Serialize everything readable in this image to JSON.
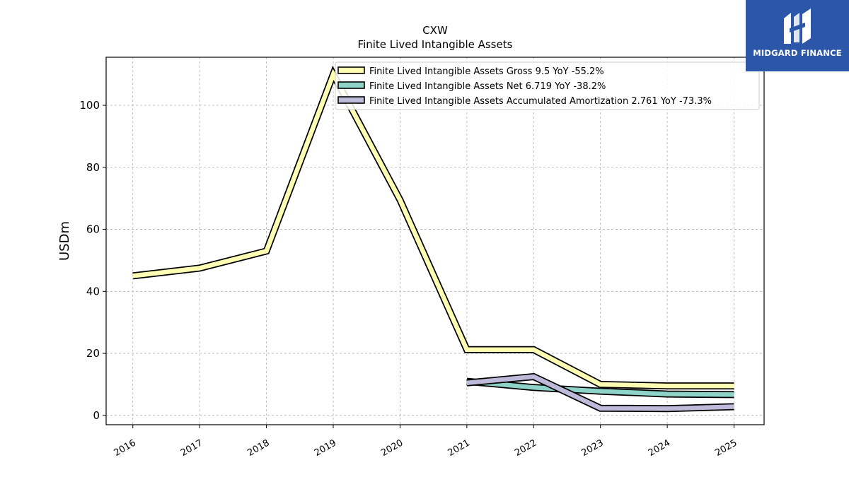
{
  "brand": {
    "name": "MIDGARD FINANCE",
    "color": "#2c57a8"
  },
  "chart_data": {
    "type": "line",
    "title": "CXW",
    "subtitle": "Finite Lived Intangible Assets",
    "xlabel": "",
    "ylabel": "USDm",
    "x": [
      2016,
      2017,
      2018,
      2019,
      2020,
      2021,
      2022,
      2023,
      2024,
      2025
    ],
    "xlim": [
      2015.6,
      2025.45
    ],
    "ylim": [
      -3,
      115.5
    ],
    "yticks": [
      0,
      20,
      40,
      60,
      80,
      100
    ],
    "grid": true,
    "legend_position": "top-right",
    "series": [
      {
        "name": "Finite Lived Intangible Assets Gross  9.5 YoY -55.2%",
        "color": "#ffffb3",
        "values": [
          45.0,
          47.5,
          53.0,
          110.0,
          69.5,
          21.2,
          21.2,
          10.0,
          9.5,
          9.5
        ]
      },
      {
        "name": "Finite Lived Intangible Assets Net  6.719 YoY -38.2%",
        "color": "#8dd3c7",
        "values": [
          null,
          null,
          null,
          null,
          null,
          11.0,
          9.0,
          7.8,
          6.9,
          6.7
        ]
      },
      {
        "name": "Finite Lived Intangible Assets Accumulated Amortization  2.761 YoY -73.3%",
        "color": "#bebada",
        "values": [
          null,
          null,
          null,
          null,
          null,
          10.5,
          12.5,
          2.3,
          2.2,
          2.8
        ]
      }
    ]
  }
}
